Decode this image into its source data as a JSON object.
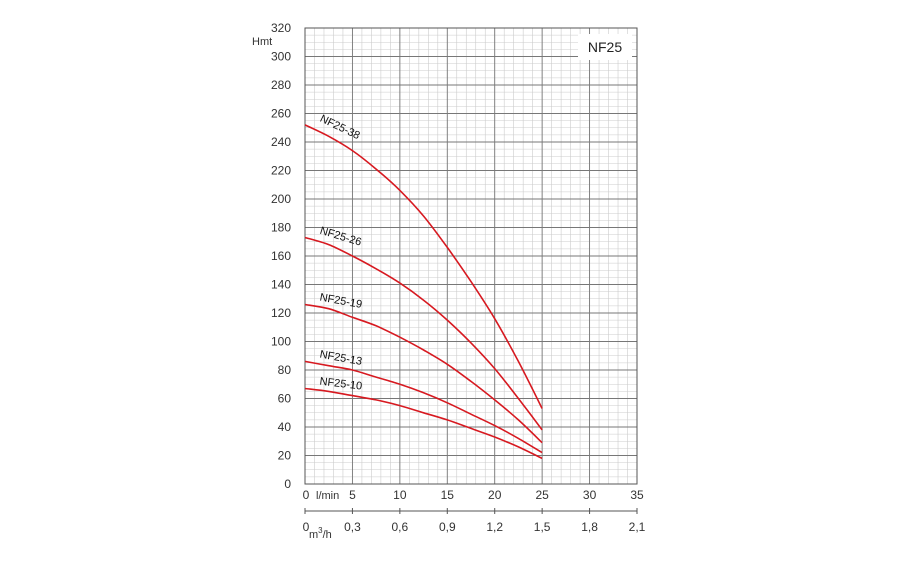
{
  "chart_data": {
    "type": "line",
    "title": "NF25",
    "ylabel": "Hmt",
    "x_unit_primary": "l/min",
    "x_unit_secondary": "m",
    "x_unit_secondary_sup": "3",
    "x_unit_secondary_tail": "/h",
    "xlim": [
      0,
      35
    ],
    "ylim": [
      0,
      320
    ],
    "grid": true,
    "y_ticks": [
      "0",
      "20",
      "40",
      "60",
      "80",
      "100",
      "120",
      "140",
      "160",
      "180",
      "200",
      "220",
      "240",
      "260",
      "280",
      "300",
      "320"
    ],
    "x_ticks_primary": [
      "0",
      "5",
      "10",
      "15",
      "20",
      "25",
      "30",
      "35"
    ],
    "x_ticks_secondary": [
      "0",
      "0,3",
      "0,6",
      "0,9",
      "1,2",
      "1,5",
      "1,8",
      "2,1"
    ],
    "colors": {
      "curve": "#d71920",
      "grid_major": "#777777",
      "grid_minor": "#cccccc"
    },
    "series": [
      {
        "name": "NF25-38",
        "x": [
          0,
          2.5,
          5,
          7.5,
          10,
          12.5,
          15,
          17.5,
          20,
          22.5,
          25
        ],
        "y": [
          252,
          244,
          234,
          221,
          206,
          188,
          166,
          142,
          116,
          86,
          53
        ]
      },
      {
        "name": "NF25-26",
        "x": [
          0,
          2.5,
          5,
          7.5,
          10,
          12.5,
          15,
          17.5,
          20,
          22.5,
          25
        ],
        "y": [
          173,
          168,
          160,
          151,
          141,
          129,
          115,
          99,
          81,
          60,
          38
        ]
      },
      {
        "name": "NF25-19",
        "x": [
          0,
          2.5,
          5,
          7.5,
          10,
          12.5,
          15,
          17.5,
          20,
          22.5,
          25
        ],
        "y": [
          126,
          123,
          117,
          111,
          103,
          94,
          84,
          72,
          59,
          45,
          29
        ]
      },
      {
        "name": "NF25-13",
        "x": [
          0,
          2.5,
          5,
          7.5,
          10,
          12.5,
          15,
          17.5,
          20,
          22.5,
          25
        ],
        "y": [
          86,
          83,
          80,
          75,
          70,
          64,
          57,
          49,
          41,
          32,
          22
        ]
      },
      {
        "name": "NF25-10",
        "x": [
          0,
          2.5,
          5,
          7.5,
          10,
          12.5,
          15,
          17.5,
          20,
          22.5,
          25
        ],
        "y": [
          67,
          65,
          62,
          59,
          55,
          50,
          45,
          39,
          33,
          26,
          18
        ]
      }
    ]
  }
}
